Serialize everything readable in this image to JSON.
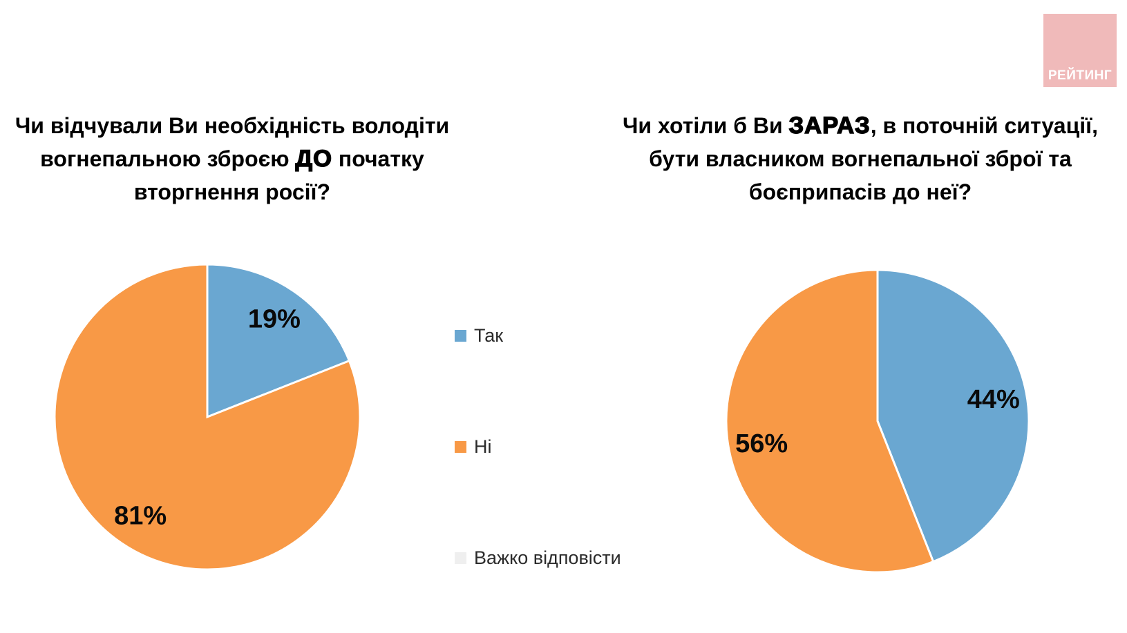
{
  "page": {
    "background": "#FFFFFF"
  },
  "logo": {
    "text": "РЕЙТИНГ",
    "bg_color": "#F0BABA",
    "text_color": "#FFFFFF"
  },
  "legend": {
    "position": "center-between-charts",
    "items": [
      {
        "label": "Так",
        "color": "#6AA7D1"
      },
      {
        "label": "Ні",
        "color": "#F89946"
      },
      {
        "label": "Важко відповісти",
        "color": "#EFEFEF"
      }
    ]
  },
  "chart_data": [
    {
      "type": "pie",
      "title": "Чи відчували Ви необхідність володіти вогнепальною зброєю ДО початку вторгнення росії?",
      "title_emphasis": "ДО",
      "title_lines": [
        [
          {
            "t": "Чи відчували Ви необхідність володіти"
          }
        ],
        [
          {
            "t": "вогнепальною зброєю "
          },
          {
            "t": "ДО",
            "em": true
          },
          {
            "t": " початку"
          }
        ],
        [
          {
            "t": "вторгнення росії?"
          }
        ]
      ],
      "categories": [
        "Так",
        "Ні",
        "Важко відповісти"
      ],
      "values": [
        19,
        81,
        0
      ],
      "colors": [
        "#6AA7D1",
        "#F89946",
        "#EFEFEF"
      ],
      "data_labels": [
        "19%",
        "81%",
        ""
      ],
      "start_angle": "12 o'clock, clockwise",
      "slice_border_color": "#FFFFFF"
    },
    {
      "type": "pie",
      "title": "Чи хотіли б Ви ЗАРАЗ, в поточній ситуації, бути власником вогнепальної зброї та боєприпасів до неї?",
      "title_emphasis": "ЗАРАЗ",
      "title_lines": [
        [
          {
            "t": "Чи хотіли б Ви "
          },
          {
            "t": "ЗАРАЗ",
            "em": true
          },
          {
            "t": ", в поточній ситуації,"
          }
        ],
        [
          {
            "t": "бути власником вогнепальної зброї та"
          }
        ],
        [
          {
            "t": "боєприпасів до неї?"
          }
        ]
      ],
      "categories": [
        "Так",
        "Ні",
        "Важко відповісти"
      ],
      "values": [
        44,
        56,
        0
      ],
      "colors": [
        "#6AA7D1",
        "#F89946",
        "#EFEFEF"
      ],
      "data_labels": [
        "44%",
        "56%",
        ""
      ],
      "start_angle": "12 o'clock, clockwise",
      "slice_border_color": "#FFFFFF"
    }
  ]
}
